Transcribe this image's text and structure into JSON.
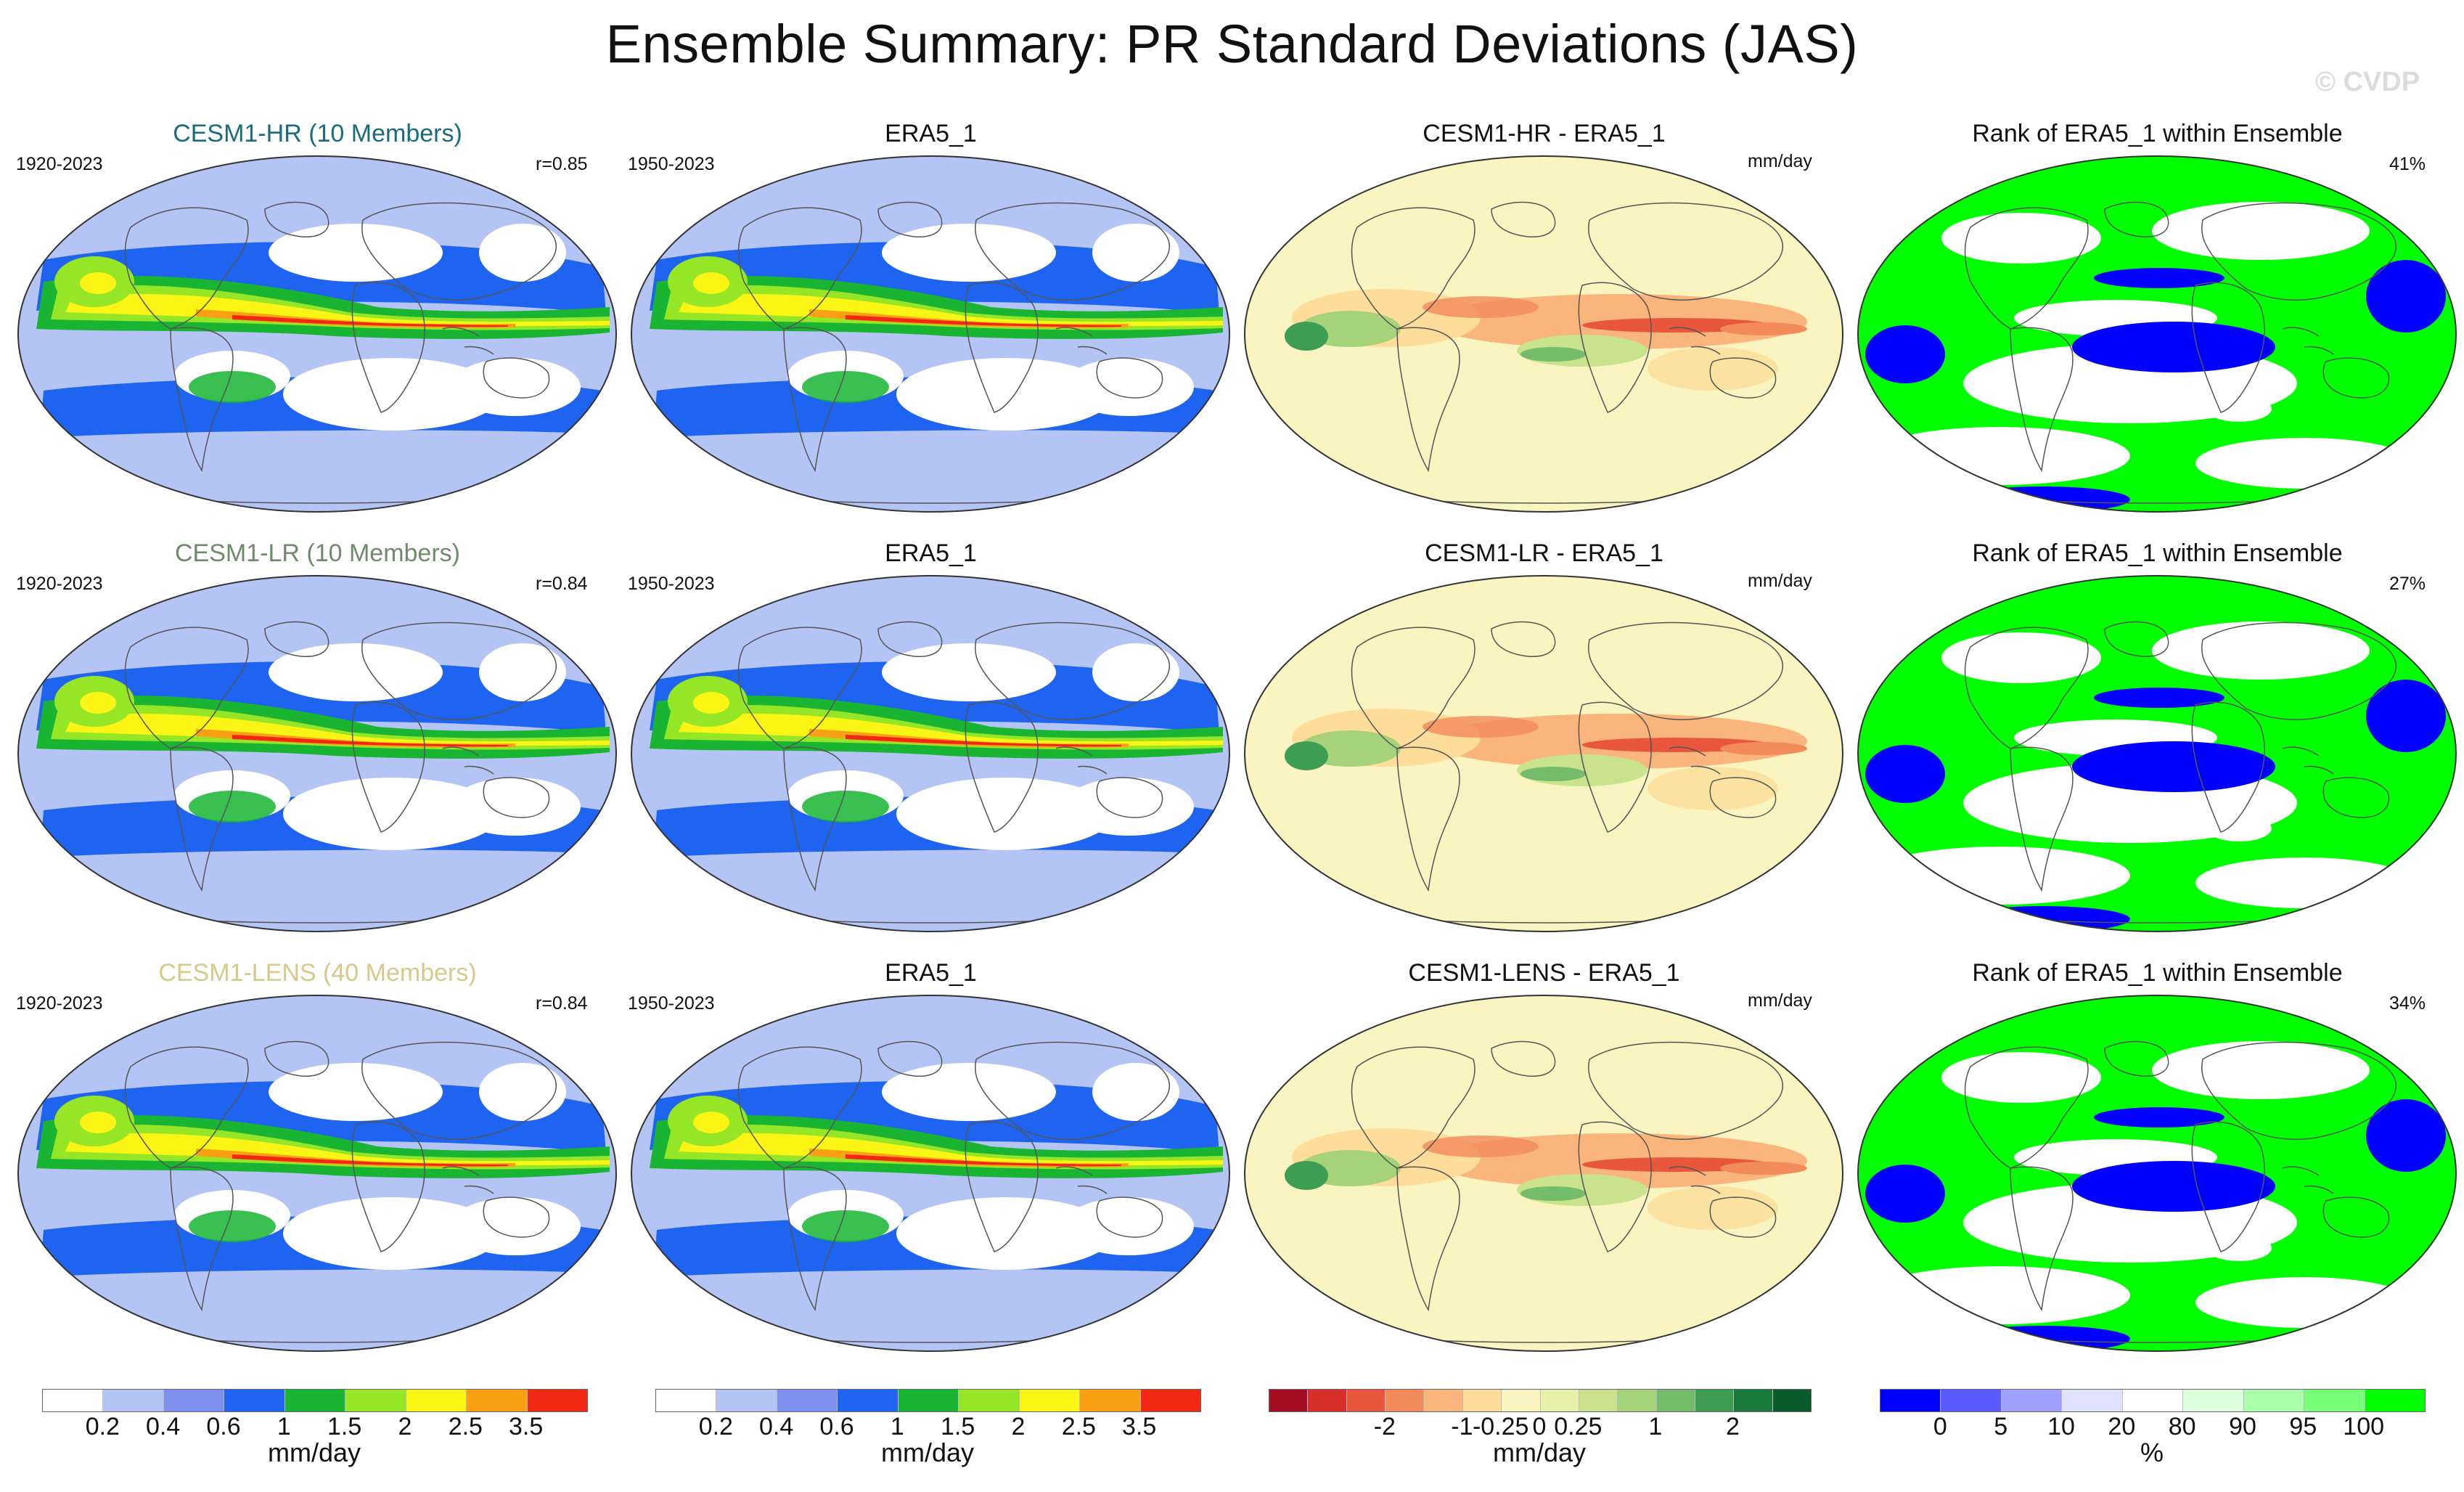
{
  "title": "Ensemble Summary: PR Standard Deviations (JAS)",
  "watermark": "© CVDP",
  "colors": {
    "title_hr": "#1a6c7c",
    "title_lr": "#6f8c6a",
    "title_lens": "#d6c98a",
    "land_outline": "#555555"
  },
  "rows": [
    {
      "ensemble": {
        "title": "CESM1-HR (10 Members)",
        "period": "1920-2023",
        "corr": "r=0.85"
      },
      "obs": {
        "title": "ERA5_1",
        "period": "1950-2023"
      },
      "diff": {
        "title": "CESM1-HR - ERA5_1",
        "units": "mm/day"
      },
      "rank": {
        "title": "Rank of ERA5_1 within Ensemble",
        "pct": "41%"
      }
    },
    {
      "ensemble": {
        "title": "CESM1-LR (10 Members)",
        "period": "1920-2023",
        "corr": "r=0.84"
      },
      "obs": {
        "title": "ERA5_1",
        "period": "1950-2023"
      },
      "diff": {
        "title": "CESM1-LR - ERA5_1",
        "units": "mm/day"
      },
      "rank": {
        "title": "Rank of ERA5_1 within Ensemble",
        "pct": "27%"
      }
    },
    {
      "ensemble": {
        "title": "CESM1-LENS (40 Members)",
        "period": "1920-2023",
        "corr": "r=0.84"
      },
      "obs": {
        "title": "ERA5_1",
        "period": "1950-2023"
      },
      "diff": {
        "title": "CESM1-LENS - ERA5_1",
        "units": "mm/day"
      },
      "rank": {
        "title": "Rank of ERA5_1 within Ensemble",
        "pct": "34%"
      }
    }
  ],
  "colorbars": {
    "std": {
      "colors": [
        "#ffffff",
        "#b4c4f4",
        "#7f8ff0",
        "#1e64f0",
        "#18b432",
        "#96e628",
        "#faf514",
        "#faa014",
        "#f02814"
      ],
      "ticks": [
        "0.2",
        "0.4",
        "0.6",
        "1",
        "1.5",
        "2",
        "2.5",
        "3.5"
      ],
      "units": "mm/day"
    },
    "diff": {
      "colors": [
        "#a50f26",
        "#d7302b",
        "#e8573c",
        "#f38a5a",
        "#f9b57c",
        "#fddd99",
        "#f9f4c0",
        "#e6f0a8",
        "#c8e38c",
        "#a6d27a",
        "#74bb6a",
        "#3c9d53",
        "#1a7a3e",
        "#0a5c2c"
      ],
      "ticks": [
        "-2",
        "-1",
        "-0.25",
        "0",
        "0.25",
        "1",
        "2"
      ],
      "units": "mm/day"
    },
    "rank": {
      "colors": [
        "#0000ff",
        "#5a5aff",
        "#a0a0ff",
        "#e0e0ff",
        "#ffffff",
        "#dcffdc",
        "#aaffaa",
        "#78ff78",
        "#00ff00"
      ],
      "ticks": [
        "0",
        "5",
        "10",
        "20",
        "80",
        "90",
        "95",
        "100"
      ],
      "units": "%"
    }
  }
}
